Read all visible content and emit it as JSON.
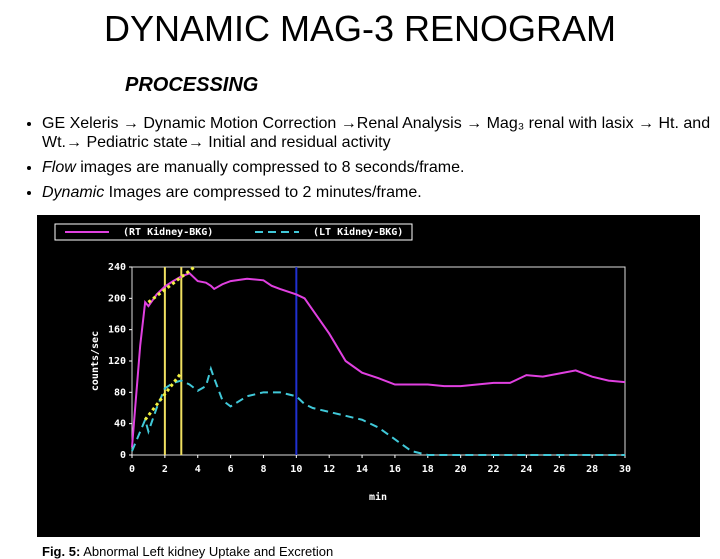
{
  "title": "DYNAMIC MAG-3 RENOGRAM",
  "subtitle": "PROCESSING",
  "bullets": [
    {
      "parts": [
        "GE Xeleris → Dynamic Motion Correction →Renal Analysis → Mag₃ renal with lasix → Ht. and Wt.→ Pediatric state→ Initial and residual activity"
      ]
    },
    {
      "parts": [
        "Flow",
        " images are manually compressed to 8 seconds/frame."
      ]
    },
    {
      "parts": [
        "Dynamic",
        " Images are compressed to 2 minutes/frame."
      ]
    }
  ],
  "caption": {
    "label": "Fig. 5:",
    "text": "Abnormal Left kidney Uptake and Excretion"
  },
  "chart_data": {
    "type": "line",
    "x_label": "min",
    "y_label": "counts/sec",
    "x": [
      0,
      0.5,
      0.8,
      1,
      1.5,
      2,
      2.5,
      3,
      3.5,
      4,
      4.5,
      4.8,
      5,
      5.5,
      6,
      7,
      8,
      8.5,
      9,
      10,
      10.5,
      11,
      12,
      13,
      14,
      15,
      16,
      17,
      18,
      19,
      20,
      21,
      22,
      23,
      24,
      25,
      26,
      27,
      28,
      29,
      30
    ],
    "series": [
      {
        "name": "(RT Kidney-BKG)",
        "color": "#e040e0",
        "dashed": false,
        "values": [
          10,
          140,
          195,
          190,
          205,
          215,
          222,
          228,
          232,
          222,
          220,
          216,
          212,
          218,
          222,
          225,
          223,
          216,
          212,
          205,
          200,
          185,
          155,
          120,
          105,
          98,
          90,
          90,
          90,
          88,
          88,
          90,
          92,
          92,
          102,
          100,
          104,
          108,
          100,
          95,
          93
        ]
      },
      {
        "name": "(LT Kidney-BKG)",
        "color": "#40c8d8",
        "dashed": true,
        "values": [
          5,
          30,
          45,
          30,
          60,
          85,
          92,
          95,
          90,
          82,
          88,
          110,
          98,
          70,
          62,
          75,
          80,
          80,
          80,
          75,
          65,
          60,
          55,
          50,
          45,
          35,
          20,
          5,
          0,
          0,
          0,
          0,
          0,
          0,
          0,
          0,
          0,
          0,
          0,
          0,
          0
        ]
      }
    ],
    "markers": [
      {
        "x": 2,
        "color": "#f0e060"
      },
      {
        "x": 3,
        "color": "#f0e060"
      },
      {
        "x": 10,
        "color": "#2030d0"
      }
    ],
    "trend_lines": [
      {
        "x": [
          1,
          3.8
        ],
        "y": [
          195,
          240
        ],
        "color": "#f0f040"
      },
      {
        "x": [
          0.8,
          3
        ],
        "y": [
          45,
          105
        ],
        "color": "#f0f040"
      }
    ],
    "xlim": [
      0,
      30
    ],
    "xticks": [
      0,
      2,
      4,
      6,
      8,
      10,
      12,
      14,
      16,
      18,
      20,
      22,
      24,
      26,
      28,
      30
    ],
    "ylim": [
      0,
      240
    ],
    "yticks": [
      0,
      40,
      80,
      120,
      160,
      200,
      240
    ]
  }
}
